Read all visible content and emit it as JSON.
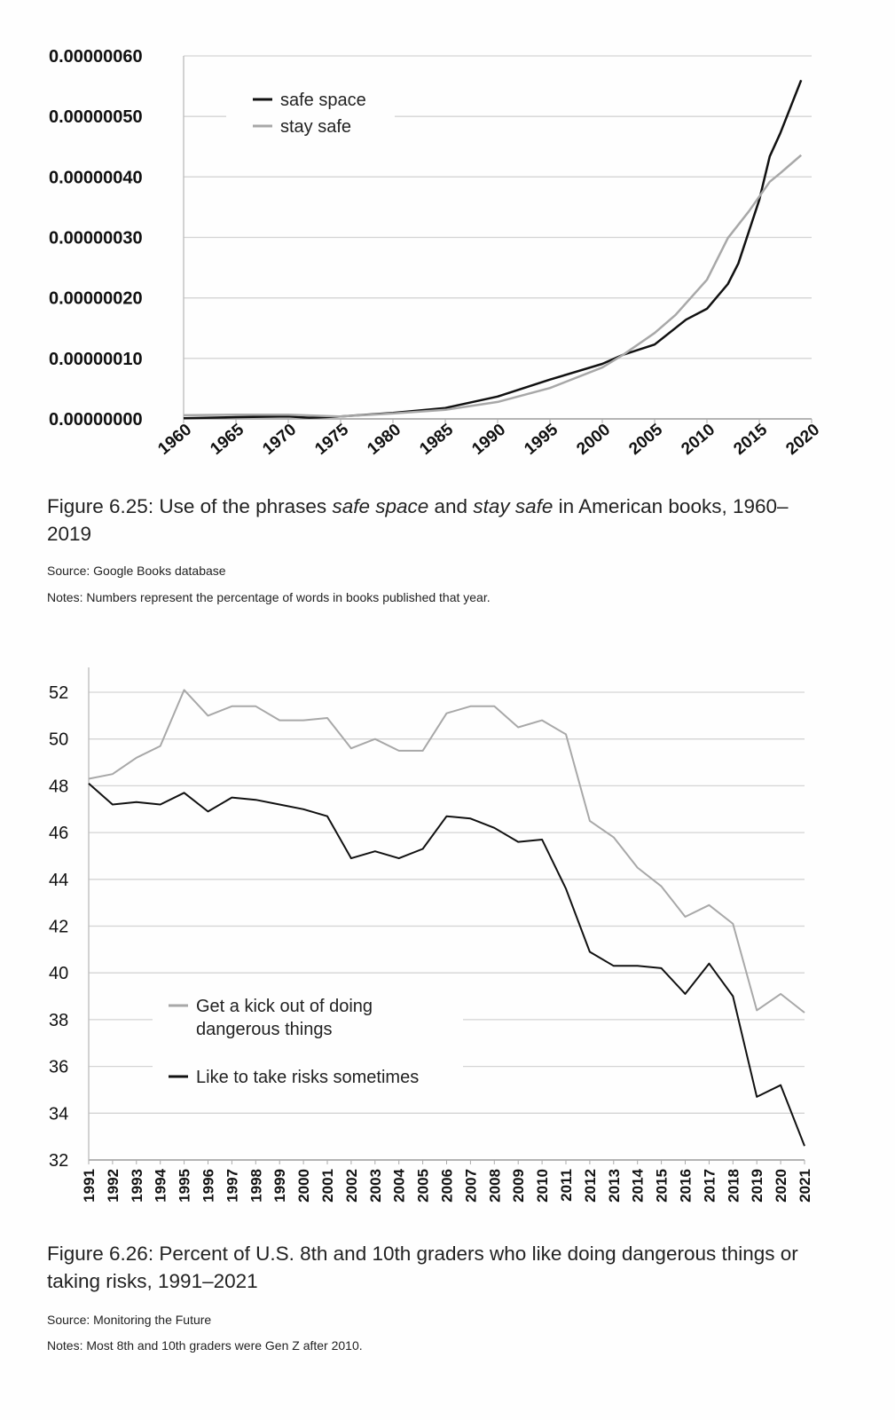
{
  "figures": [
    {
      "caption": {
        "prefix": "Figure 6.25: Use of the phrases ",
        "italic1": "safe space",
        "mid": " and ",
        "italic2": "stay safe",
        "suffix": " in American books, 1960–2019"
      },
      "source": "Source: Google Books database",
      "notes": "Notes: Numbers represent the percentage of words in books published that year."
    },
    {
      "caption": {
        "prefix": "Figure 6.26: Percent of U.S. 8th and 10th graders who like doing dangerous things or taking risks, 1991–2021"
      },
      "source": "Source: Monitoring the Future",
      "notes": "Notes: Most 8th and 10th graders were Gen Z after 2010."
    }
  ],
  "chart_data": [
    {
      "type": "line",
      "title": "Use of the phrases safe space and stay safe in American books, 1960–2019",
      "xlabel": "",
      "ylabel": "",
      "xlim": [
        1960,
        2020
      ],
      "ylim": [
        0,
        6e-07
      ],
      "x_ticks": [
        "1960",
        "1965",
        "1970",
        "1975",
        "1980",
        "1985",
        "1990",
        "1995",
        "2000",
        "2005",
        "2010",
        "2015",
        "2020"
      ],
      "y_ticks": [
        "0.00000000",
        "0.00000010",
        "0.00000020",
        "0.00000030",
        "0.00000040",
        "0.00000050",
        "0.00000060"
      ],
      "grid": true,
      "legend_position": "top-left",
      "series": [
        {
          "name": "safe space",
          "color": "#111111",
          "x": [
            1960,
            1965,
            1970,
            1972,
            1975,
            1980,
            1985,
            1990,
            1995,
            2000,
            2002,
            2005,
            2008,
            2010,
            2012,
            2013,
            2015,
            2016,
            2017,
            2019
          ],
          "values": [
            1e-09,
            3e-09,
            4e-09,
            2e-09,
            4e-09,
            1e-08,
            1.8e-08,
            3.7e-08,
            6.5e-08,
            9.1e-08,
            1.06e-07,
            1.23e-07,
            1.64e-07,
            1.82e-07,
            2.23e-07,
            2.57e-07,
            3.62e-07,
            4.34e-07,
            4.72e-07,
            5.6e-07
          ]
        },
        {
          "name": "stay safe",
          "color": "#a8a8a8",
          "x": [
            1960,
            1965,
            1970,
            1975,
            1980,
            1985,
            1990,
            1995,
            2000,
            2002,
            2005,
            2007,
            2010,
            2012,
            2014,
            2016,
            2017,
            2019
          ],
          "values": [
            6e-09,
            7e-09,
            7e-09,
            4e-09,
            9e-09,
            1.5e-08,
            2.8e-08,
            5.1e-08,
            8.5e-08,
            1.06e-07,
            1.42e-07,
            1.72e-07,
            2.3e-07,
            2.99e-07,
            3.43e-07,
            3.92e-07,
            4.06e-07,
            4.36e-07
          ]
        }
      ]
    },
    {
      "type": "line",
      "title": "Percent of U.S. 8th and 10th graders who like doing dangerous things or taking risks, 1991–2021",
      "xlabel": "",
      "ylabel": "",
      "xlim": [
        1991,
        2021
      ],
      "ylim": [
        32,
        52
      ],
      "x_ticks": [
        "1991",
        "1992",
        "1993",
        "1994",
        "1995",
        "1996",
        "1997",
        "1998",
        "1999",
        "2000",
        "2001",
        "2002",
        "2003",
        "2004",
        "2005",
        "2006",
        "2007",
        "2008",
        "2009",
        "2010",
        "2011",
        "2012",
        "2013",
        "2014",
        "2015",
        "2016",
        "2017",
        "2018",
        "2019",
        "2020",
        "2021"
      ],
      "y_ticks": [
        "32",
        "34",
        "36",
        "38",
        "40",
        "42",
        "44",
        "46",
        "48",
        "50",
        "52"
      ],
      "grid": true,
      "legend_position": "bottom-left",
      "series": [
        {
          "name": "Get a kick out of doing dangerous things",
          "name_lines": [
            "Get a kick out of doing",
            "dangerous things"
          ],
          "color": "#a8a8a8",
          "values": [
            48.3,
            48.5,
            49.2,
            49.7,
            52.1,
            51.0,
            51.4,
            51.4,
            50.8,
            50.8,
            50.9,
            49.6,
            50.0,
            49.5,
            49.5,
            51.1,
            51.4,
            51.4,
            50.5,
            50.8,
            50.2,
            46.5,
            45.8,
            44.5,
            43.7,
            42.4,
            42.9,
            42.1,
            38.4,
            39.1,
            38.3
          ]
        },
        {
          "name": "Like to take risks sometimes",
          "name_lines": [
            "Like to take risks sometimes"
          ],
          "color": "#111111",
          "values": [
            48.1,
            47.2,
            47.3,
            47.2,
            47.7,
            46.9,
            47.5,
            47.4,
            47.2,
            47.0,
            46.7,
            44.9,
            45.2,
            44.9,
            45.3,
            46.7,
            46.6,
            46.2,
            45.6,
            45.7,
            43.6,
            40.9,
            40.3,
            40.3,
            40.2,
            39.1,
            40.4,
            39.0,
            34.7,
            35.2,
            32.6
          ]
        }
      ]
    }
  ]
}
